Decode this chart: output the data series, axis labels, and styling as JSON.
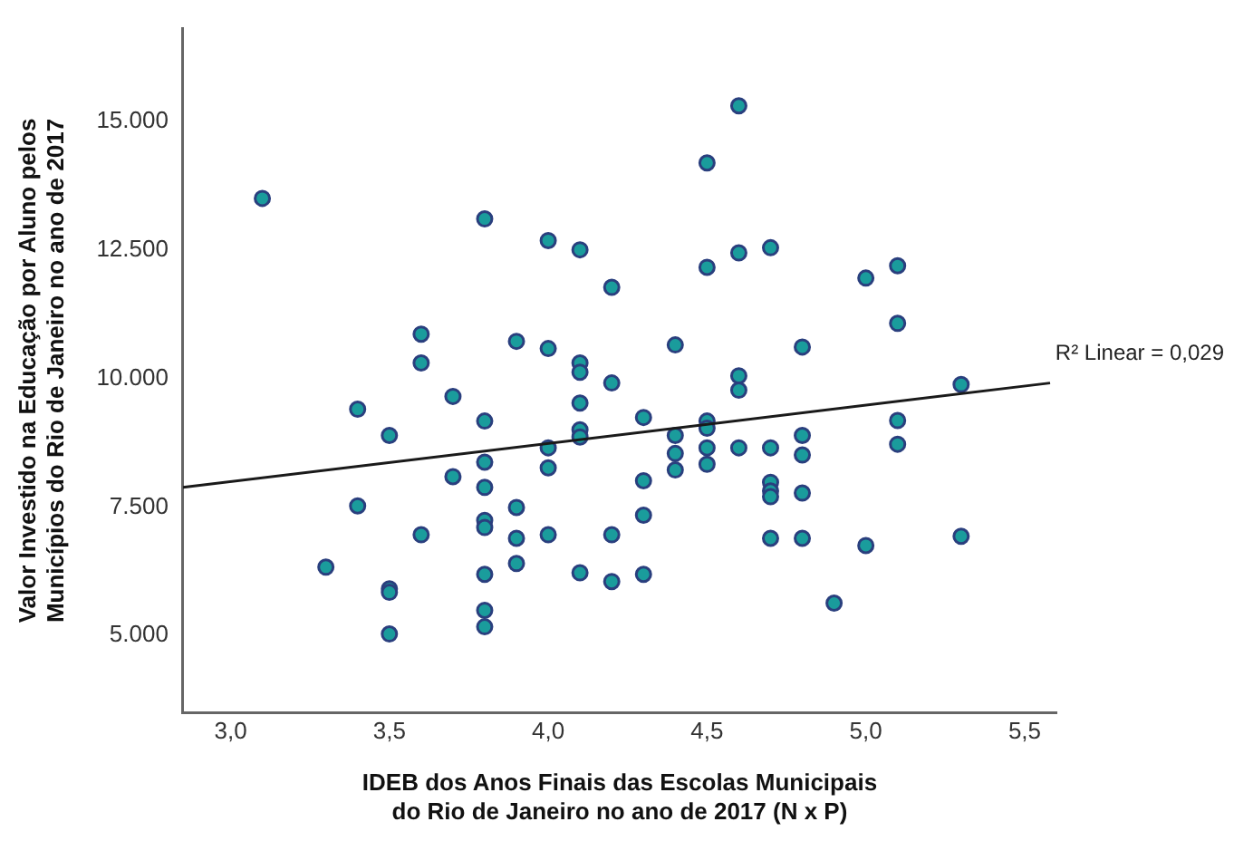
{
  "chart_data": {
    "type": "scatter",
    "xlabel": "IDEB dos Anos Finais das Escolas Municipais do Rio de Janeiro no ano de 2017 (N x P)",
    "ylabel": "Valor Investido na Educação por Aluno pelos Municípios do Rio de Janeiro no ano de 2017",
    "xlim": [
      2.85,
      5.6
    ],
    "ylim": [
      3500,
      16800
    ],
    "xticks": [
      {
        "value": 3.0,
        "label": "3,0"
      },
      {
        "value": 3.5,
        "label": "3,5"
      },
      {
        "value": 4.0,
        "label": "4,0"
      },
      {
        "value": 4.5,
        "label": "4,5"
      },
      {
        "value": 5.0,
        "label": "5,0"
      },
      {
        "value": 5.5,
        "label": "5,5"
      }
    ],
    "yticks": [
      {
        "value": 5000,
        "label": "5.000"
      },
      {
        "value": 7500,
        "label": "7.500"
      },
      {
        "value": 10000,
        "label": "10.000"
      },
      {
        "value": 12500,
        "label": "12.500"
      },
      {
        "value": 15000,
        "label": "15.000"
      }
    ],
    "grid": false,
    "legend": false,
    "marker": "circle",
    "series": [
      {
        "color": "#1a9c9c",
        "x": [
          3.1,
          3.8,
          4.0,
          4.1,
          4.2,
          3.6,
          3.6,
          3.9,
          4.0,
          4.1,
          4.1,
          4.2,
          3.7,
          4.1,
          4.6,
          4.5,
          4.6,
          4.7,
          4.5,
          5.0,
          5.1,
          5.1,
          4.4,
          4.8,
          4.6,
          4.6,
          5.3,
          3.4,
          3.8,
          3.5,
          4.1,
          4.1,
          4.0,
          4.0,
          3.8,
          3.7,
          3.8,
          3.4,
          3.9,
          3.6,
          3.8,
          3.8,
          3.9,
          4.0,
          4.2,
          3.3,
          3.9,
          3.8,
          4.1,
          4.2,
          3.5,
          3.5,
          3.8,
          3.8,
          3.5,
          4.3,
          4.5,
          4.5,
          4.4,
          4.4,
          4.4,
          4.5,
          4.5,
          4.6,
          4.7,
          4.8,
          4.8,
          5.1,
          5.1,
          4.3,
          4.3,
          4.7,
          4.7,
          4.7,
          4.8,
          4.7,
          4.8,
          5.0,
          5.3,
          4.3,
          4.9
        ],
        "values": [
          13500,
          13100,
          12680,
          12500,
          11770,
          10860,
          10300,
          10720,
          10580,
          10300,
          10120,
          9910,
          9650,
          9520,
          15300,
          14190,
          12440,
          12540,
          12160,
          11950,
          12190,
          11070,
          10650,
          10610,
          10050,
          9770,
          9880,
          9400,
          9170,
          8890,
          9000,
          8860,
          8650,
          8260,
          8370,
          8090,
          7880,
          7520,
          7490,
          6960,
          7240,
          7100,
          6890,
          6960,
          6960,
          6330,
          6400,
          6190,
          6220,
          6050,
          5910,
          5840,
          5490,
          5170,
          5030,
          9240,
          9170,
          9030,
          8890,
          8540,
          8220,
          8650,
          8330,
          8650,
          8650,
          8890,
          8510,
          9180,
          8720,
          8010,
          7340,
          7980,
          7810,
          7700,
          7770,
          6890,
          6890,
          6750,
          6930,
          6190,
          5630
        ]
      },
      {
        "type": "line",
        "name": "R² Linear = 0,029",
        "color": "#1a1a1a",
        "x": [
          2.85,
          5.58
        ],
        "values": [
          7880,
          9910
        ],
        "marker": "none"
      }
    ]
  }
}
